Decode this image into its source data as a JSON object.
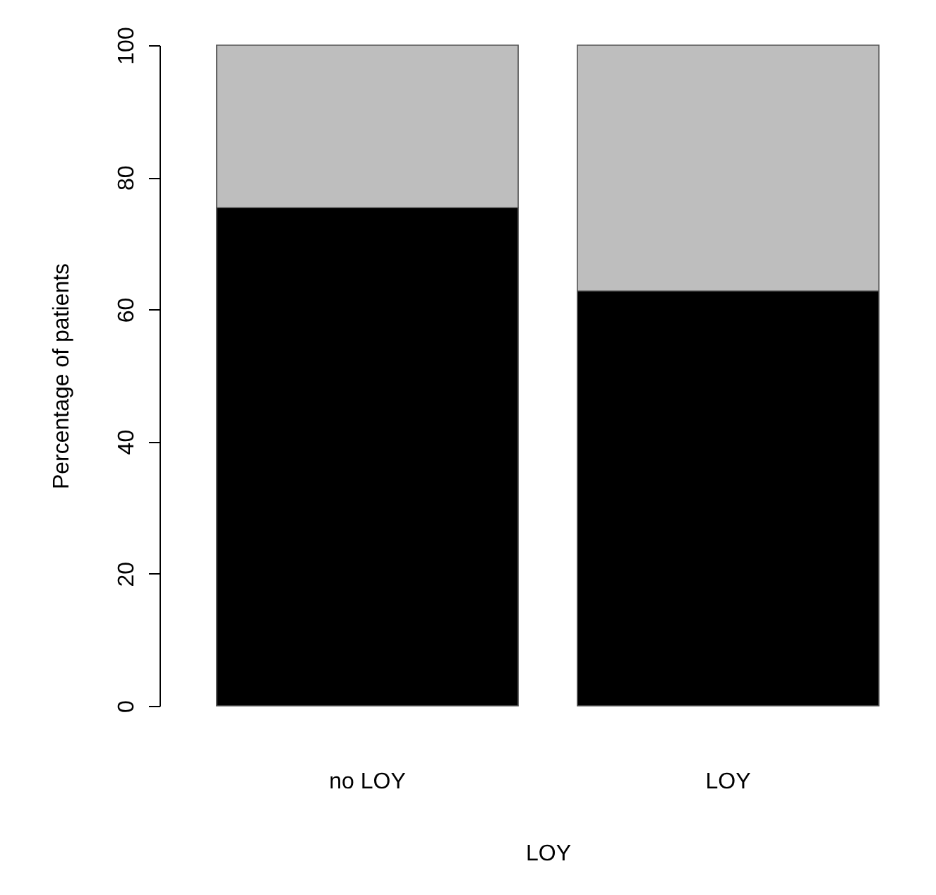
{
  "chart_data": {
    "type": "bar",
    "stacked": true,
    "categories": [
      "no LOY",
      "LOY"
    ],
    "xlabel": "LOY",
    "ylabel": "Percentage of patients",
    "ylim": [
      0,
      100
    ],
    "yticks": [
      0,
      20,
      40,
      60,
      80,
      100
    ],
    "grid": false,
    "series": [
      {
        "color": "#000000",
        "values": [
          75.4,
          62.8
        ]
      },
      {
        "color": "#bebebe",
        "values": [
          24.6,
          37.2
        ]
      }
    ]
  }
}
